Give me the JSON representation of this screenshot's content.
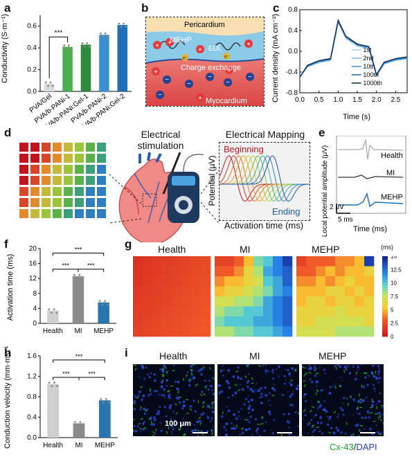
{
  "panels": {
    "a": {
      "label": "a",
      "ylabel": "Conductivity (S·m⁻¹)",
      "yticks": [
        "0.0",
        "0.2",
        "0.4",
        "0.6"
      ],
      "sig": "***",
      "categories": [
        "PVA/Gel",
        "PVA/b-PANi-1",
        "PVA/b-PANi:Gel-1",
        "PVA/b-PANi-2",
        "PVA/b-PANi:Gel-2"
      ]
    },
    "b": {
      "label": "b",
      "layers": [
        "Pericardium",
        "MEHP",
        "EDL",
        "Charge exchange",
        "Myocardium"
      ],
      "electron": "e⁻"
    },
    "c": {
      "label": "c",
      "ylabel": "Current density (mA cm⁻²)",
      "xlabel": "Time (s)",
      "yticks": [
        "0.8",
        "0.4",
        "0.0",
        "-0.4",
        "-0.8"
      ],
      "xticks": [
        "0.0",
        "0.5",
        "1.0",
        "1.5",
        "2.0",
        "2.5"
      ],
      "legend": [
        "1st",
        "2nd",
        "10th",
        "100th",
        "1000th"
      ]
    },
    "d": {
      "label": "d",
      "stim_title": "Electrical\nstimulation",
      "map_title": "Electrical Mapping",
      "beginning": "Beginning",
      "ending": "Ending",
      "ylabel": "Potential (μV)",
      "xlabel": "Activation time (ms)"
    },
    "e": {
      "label": "e",
      "ylabel": "Local potential amplitude (μV)",
      "traces": [
        "Health",
        "MI",
        "MEHP"
      ],
      "scale_y": "2 μV",
      "scale_x": "5 ms",
      "xlabel": "Time (ms)"
    },
    "f": {
      "label": "f",
      "ylabel": "Activation time (ms)",
      "yticks": [
        "0",
        "4",
        "8",
        "12",
        "16",
        "20"
      ],
      "categories": [
        "Health",
        "MI",
        "MEHP"
      ],
      "sig": "***"
    },
    "g": {
      "label": "g",
      "titles": [
        "Health",
        "MI",
        "MEHP"
      ],
      "colorbar_unit": "(ms)",
      "colorbar_ticks": [
        "15",
        "12.5",
        "10",
        "7.5",
        "5",
        "2.5",
        "0"
      ]
    },
    "h": {
      "label": "h",
      "ylabel": "Conduction velocity (mm·ms⁻¹)",
      "yticks": [
        "0.0",
        "0.4",
        "0.8",
        "1.2",
        "1.6"
      ],
      "categories": [
        "Health",
        "MI",
        "MEHP"
      ],
      "sig": "***"
    },
    "i": {
      "label": "i",
      "titles": [
        "Health",
        "MI",
        "MEHP"
      ],
      "scale": "100 μm",
      "stain_a": "Cx-43",
      "stain_sep": "/",
      "stain_b": "DAPI"
    }
  },
  "chart_data": [
    {
      "id": "a",
      "type": "bar",
      "categories": [
        "PVA/Gel",
        "PVA/b-PANi-1",
        "PVA/b-PANi:Gel-1",
        "PVA/b-PANi-2",
        "PVA/b-PANi:Gel-2"
      ],
      "values": [
        0.07,
        0.41,
        0.43,
        0.52,
        0.61
      ],
      "ylabel": "Conductivity (S·m⁻¹)",
      "ylim": [
        0,
        0.7
      ],
      "colors": [
        "#d9d9d9",
        "#4caf50",
        "#2e8b3e",
        "#3a8fd0",
        "#1e6fb8"
      ]
    },
    {
      "id": "c",
      "type": "line",
      "xlabel": "Time (s)",
      "ylabel": "Current density (mA cm⁻²)",
      "xlim": [
        0,
        2.8
      ],
      "ylim": [
        -0.8,
        0.8
      ],
      "x": [
        0,
        0.2,
        0.5,
        0.8,
        1.0,
        1.2,
        1.5,
        1.8,
        2.0,
        2.2,
        2.5,
        2.8
      ],
      "series": [
        {
          "name": "1st",
          "values": [
            -0.5,
            -0.3,
            -0.22,
            -0.18,
            0.55,
            0.25,
            0.1,
            0.05,
            -0.48,
            -0.25,
            -0.18,
            -0.15
          ]
        },
        {
          "name": "2nd",
          "values": [
            -0.5,
            -0.3,
            -0.21,
            -0.17,
            0.56,
            0.26,
            0.11,
            0.06,
            -0.47,
            -0.24,
            -0.17,
            -0.14
          ]
        },
        {
          "name": "10th",
          "values": [
            -0.5,
            -0.29,
            -0.2,
            -0.16,
            0.57,
            0.27,
            0.12,
            0.07,
            -0.46,
            -0.23,
            -0.16,
            -0.13
          ]
        },
        {
          "name": "100th",
          "values": [
            -0.5,
            -0.28,
            -0.19,
            -0.15,
            0.58,
            0.28,
            0.13,
            0.08,
            -0.46,
            -0.22,
            -0.15,
            -0.12
          ]
        },
        {
          "name": "1000th",
          "values": [
            -0.5,
            -0.27,
            -0.18,
            -0.14,
            0.6,
            0.29,
            0.14,
            0.09,
            -0.45,
            -0.21,
            -0.14,
            -0.11
          ]
        }
      ]
    },
    {
      "id": "f",
      "type": "bar",
      "categories": [
        "Health",
        "MI",
        "MEHP"
      ],
      "values": [
        3.4,
        12.6,
        5.6
      ],
      "ylabel": "Activation time (ms)",
      "ylim": [
        0,
        20
      ],
      "colors": [
        "#cfcfcf",
        "#8a8a8a",
        "#2a74b0"
      ]
    },
    {
      "id": "h",
      "type": "bar",
      "categories": [
        "Health",
        "MI",
        "MEHP"
      ],
      "values": [
        1.05,
        0.28,
        0.73
      ],
      "ylabel": "Conduction velocity (mm·ms⁻¹)",
      "ylim": [
        0,
        1.6
      ],
      "colors": [
        "#cfcfcf",
        "#8a8a8a",
        "#2a74b0"
      ]
    },
    {
      "id": "g",
      "type": "heatmap",
      "titles": [
        "Health",
        "MI",
        "MEHP"
      ],
      "zlim": [
        0,
        15
      ],
      "zlabel": "(ms)"
    }
  ],
  "colors": {
    "pericardium": "#f6d9a8",
    "mehp": "#7cc4e6",
    "myocardium": "#e15b5b",
    "cx43": "#1db11d",
    "dapi": "#1f3fbf"
  }
}
